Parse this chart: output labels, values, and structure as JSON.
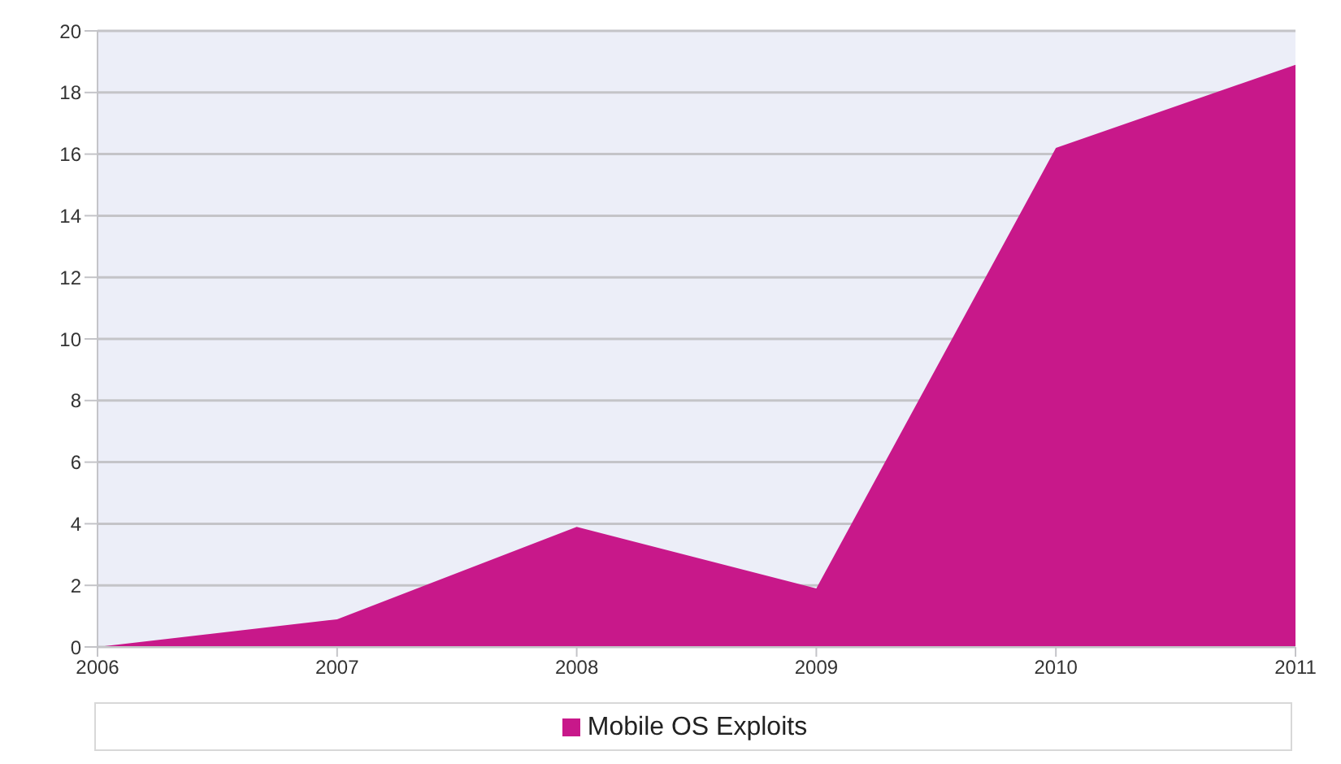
{
  "chart_data": {
    "type": "area",
    "x": [
      2006,
      2007,
      2008,
      2009,
      2010,
      2011
    ],
    "series": [
      {
        "name": "Mobile OS Exploits",
        "color": "#c8188a",
        "values": [
          0,
          0.9,
          3.9,
          1.9,
          16.2,
          18.9
        ]
      }
    ],
    "xlim": [
      2006,
      2011
    ],
    "xticks": [
      2006,
      2007,
      2008,
      2009,
      2010,
      2011
    ],
    "ylim": [
      0,
      20
    ],
    "yticks": [
      0,
      2,
      4,
      6,
      8,
      10,
      12,
      14,
      16,
      18,
      20
    ],
    "grid": "y",
    "legend": "bottom"
  }
}
